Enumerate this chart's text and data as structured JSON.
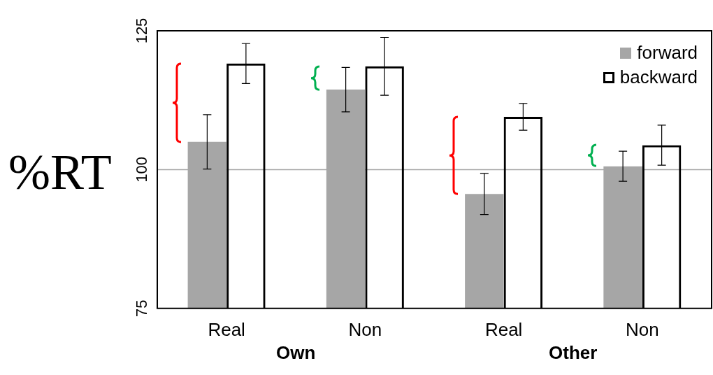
{
  "chart_data": {
    "type": "bar",
    "ylabel": "%RT",
    "categories": [
      "Real",
      "Non",
      "Real",
      "Non"
    ],
    "annotations": [
      "Own",
      "Other"
    ],
    "series": [
      {
        "name": "forward",
        "color": "#a6a6a6",
        "values": [
          105.0,
          114.4,
          95.6,
          100.6
        ],
        "errors": [
          4.9,
          4.0,
          3.7,
          2.7
        ]
      },
      {
        "name": "backward",
        "color": "#000000",
        "values": [
          119.1,
          118.6,
          109.5,
          104.4
        ],
        "errors": [
          3.6,
          5.2,
          2.4,
          3.6
        ]
      }
    ],
    "ylim": [
      75,
      125
    ],
    "yticks": [
      75,
      100,
      125
    ],
    "ref_lines": [
      {
        "axis": "y",
        "value": 100,
        "color": "#a6a6a6"
      }
    ],
    "legend": "top right"
  }
}
